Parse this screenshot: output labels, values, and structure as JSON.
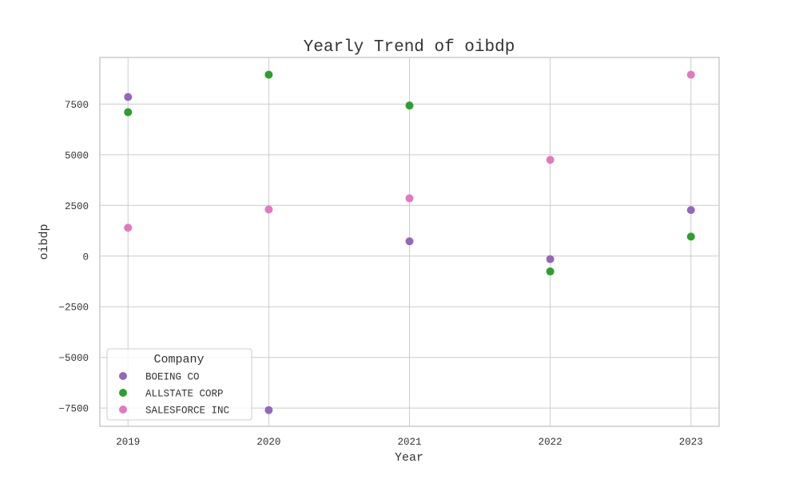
{
  "chart_data": {
    "type": "scatter",
    "title": "Yearly Trend of oibdp",
    "xlabel": "Year",
    "ylabel": "oibdp",
    "x": [
      2019,
      2020,
      2021,
      2022,
      2023
    ],
    "x_tick_labels": [
      "2019",
      "2020",
      "2021",
      "2022",
      "2023"
    ],
    "y_ticks": [
      -7500,
      -5000,
      -2500,
      0,
      2500,
      5000,
      7500
    ],
    "y_tick_labels": [
      "−7500",
      "−5000",
      "−2500",
      "0",
      "2500",
      "5000",
      "7500"
    ],
    "xlim": [
      2018.8,
      2023.2
    ],
    "ylim": [
      -8400,
      9800
    ],
    "grid": true,
    "legend": {
      "title": "Company",
      "position": "lower-left"
    },
    "series": [
      {
        "name": "BOEING CO",
        "color": "#9467bd",
        "points": [
          [
            2019,
            7850
          ],
          [
            2020,
            -7600
          ],
          [
            2021,
            730
          ],
          [
            2022,
            -150
          ],
          [
            2023,
            2270
          ]
        ]
      },
      {
        "name": "ALLSTATE CORP",
        "color": "#2ca02c",
        "points": [
          [
            2019,
            7100
          ],
          [
            2020,
            8950
          ],
          [
            2021,
            7430
          ],
          [
            2022,
            -760
          ],
          [
            2023,
            960
          ]
        ]
      },
      {
        "name": "SALESFORCE INC",
        "color": "#e377c2",
        "points": [
          [
            2019,
            1400
          ],
          [
            2020,
            2300
          ],
          [
            2021,
            2850
          ],
          [
            2022,
            4750
          ],
          [
            2023,
            8950
          ]
        ]
      }
    ]
  }
}
